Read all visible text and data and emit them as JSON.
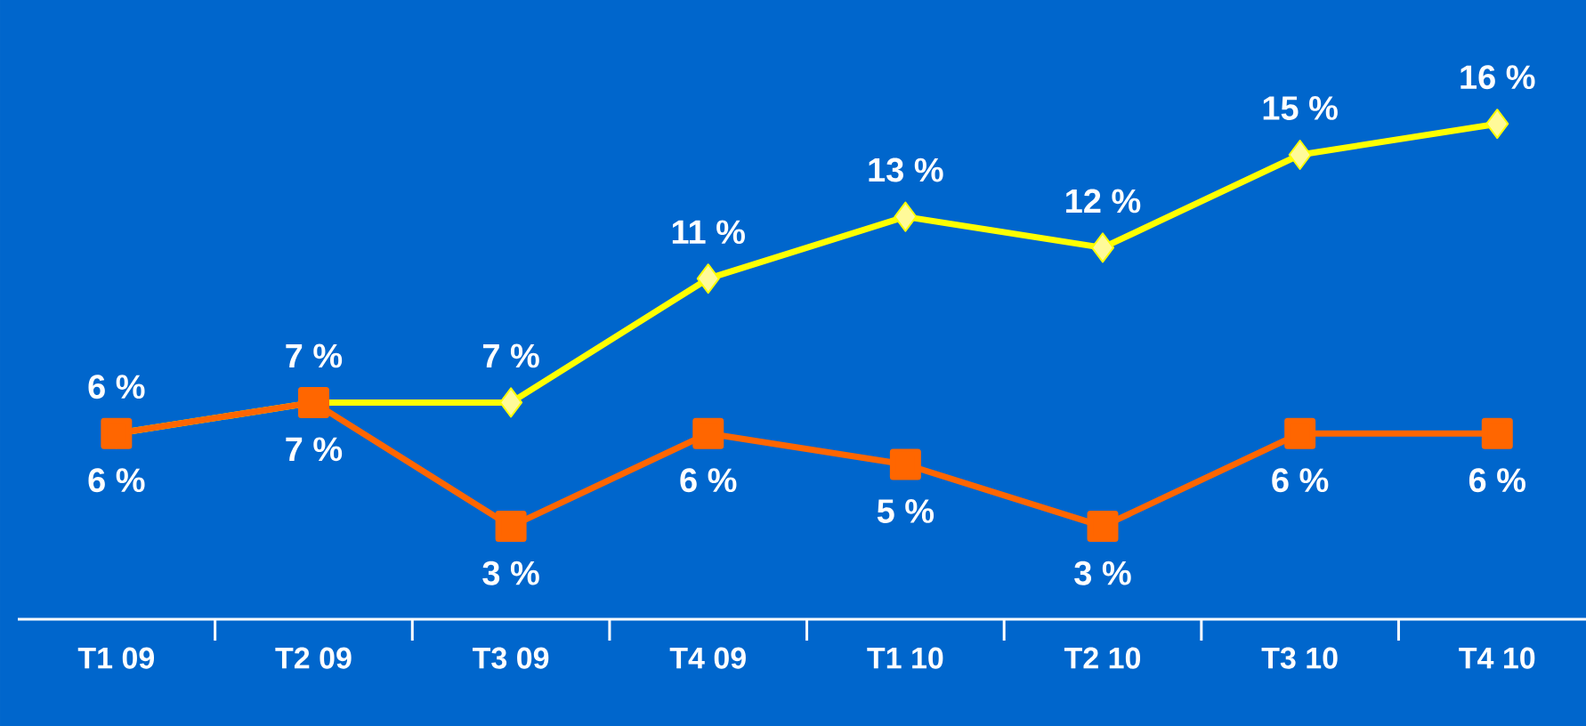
{
  "chart_data": {
    "type": "line",
    "categories": [
      "T1 09",
      "T2 09",
      "T3 09",
      "T4 09",
      "T1 10",
      "T2 10",
      "T3 10",
      "T4 10"
    ],
    "ylim": [
      0,
      20
    ],
    "tick_labels": "x",
    "line_style": "solid",
    "series": [
      {
        "color": "#ffff00",
        "marker": "diamond",
        "values": [
          6,
          7,
          7,
          11,
          13,
          12,
          15,
          16
        ],
        "value_labels": [
          "6 %",
          "7 %",
          "7 %",
          "11 %",
          "13 %",
          "12 %",
          "15 %",
          "16 %"
        ]
      },
      {
        "color": "#ff6600",
        "marker": "square",
        "values": [
          6,
          7,
          3,
          6,
          5,
          3,
          6,
          6
        ],
        "value_labels": [
          "6 %",
          "7 %",
          "3 %",
          "6 %",
          "5 %",
          "3 %",
          "6 %",
          "6 %"
        ]
      }
    ]
  }
}
